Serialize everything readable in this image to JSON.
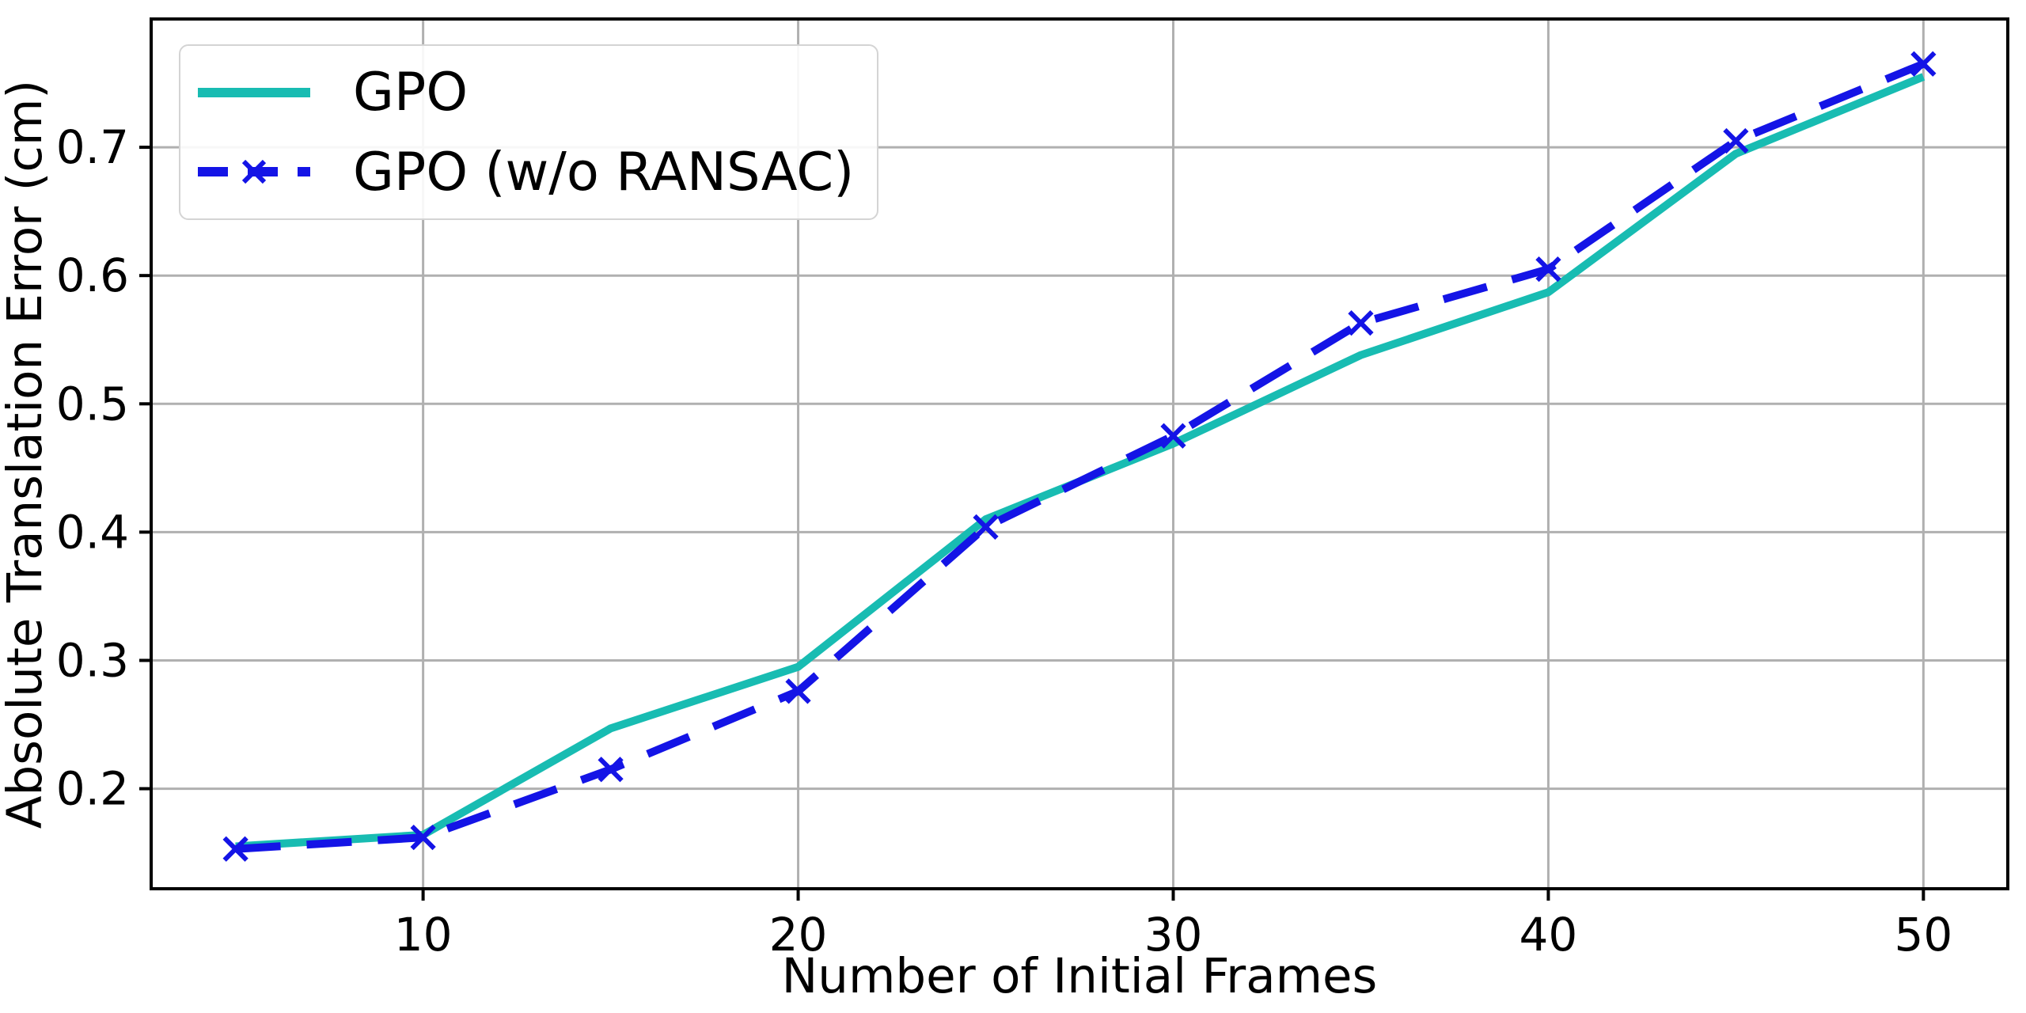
{
  "chart_data": {
    "type": "line",
    "title": "",
    "xlabel": "Number of Initial Frames",
    "ylabel": "Absolute Translation Error (cm)",
    "x": [
      5,
      10,
      15,
      20,
      25,
      30,
      35,
      40,
      45,
      50
    ],
    "series": [
      {
        "name": "GPO",
        "color": "#18bcb2",
        "line_style": "solid",
        "marker": "none",
        "values": [
          0.155,
          0.164,
          0.247,
          0.295,
          0.41,
          0.469,
          0.538,
          0.587,
          0.695,
          0.755
        ]
      },
      {
        "name": "GPO (w/o RANSAC)",
        "color": "#1414e6",
        "line_style": "dashed",
        "marker": "x",
        "values": [
          0.153,
          0.162,
          0.215,
          0.276,
          0.404,
          0.475,
          0.563,
          0.605,
          0.705,
          0.765
        ]
      }
    ],
    "xticks": [
      10,
      20,
      30,
      40,
      50
    ],
    "xtick_labels": [
      "10",
      "20",
      "30",
      "40",
      "50"
    ],
    "yticks": [
      0.2,
      0.3,
      0.4,
      0.5,
      0.6,
      0.7
    ],
    "ytick_labels": [
      "0.2",
      "0.3",
      "0.4",
      "0.5",
      "0.6",
      "0.7"
    ],
    "xlim": [
      2.75,
      52.25
    ],
    "ylim": [
      0.122,
      0.8
    ],
    "grid": true,
    "grid_color": "#b0b0b0",
    "spine_color": "#000000",
    "legend_position": "upper-left"
  }
}
